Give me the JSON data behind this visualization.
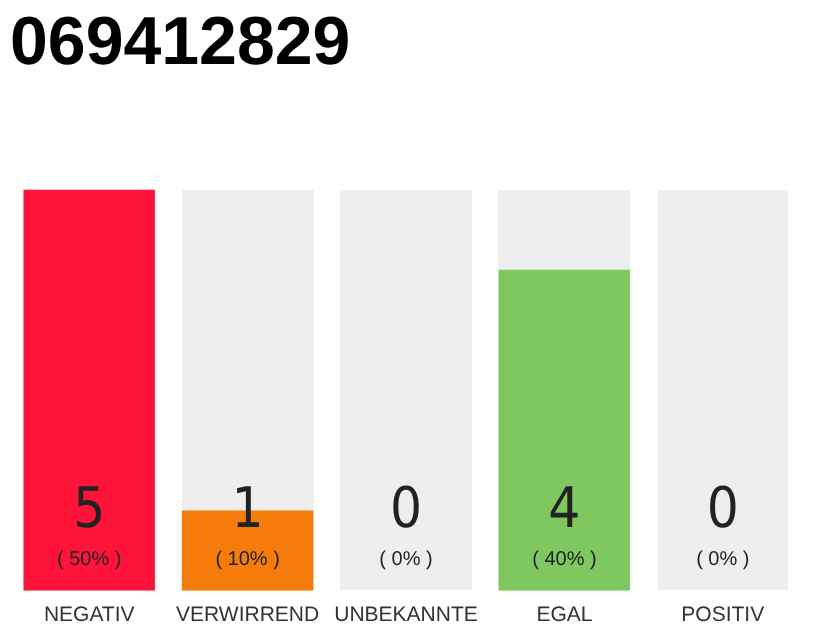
{
  "chart_data": {
    "type": "bar",
    "title": "069412829",
    "categories": [
      "NEGATIV",
      "VERWIRREND",
      "UNBEKANNTE",
      "EGAL",
      "POSITIV"
    ],
    "values": [
      50,
      10,
      0,
      40,
      0
    ],
    "colors": [
      "#ff1439",
      "#f57c0a",
      "#999999",
      "#7ec85f",
      "#999999"
    ],
    "value_labels": [
      "( 50% )",
      "( 10% )",
      "( 0% )",
      "( 40% )",
      "( 0% )"
    ],
    "annotations": [
      "5",
      "1",
      "0",
      "4",
      "0"
    ],
    "tick_labels": "x",
    "grid": false,
    "legend": false
  }
}
